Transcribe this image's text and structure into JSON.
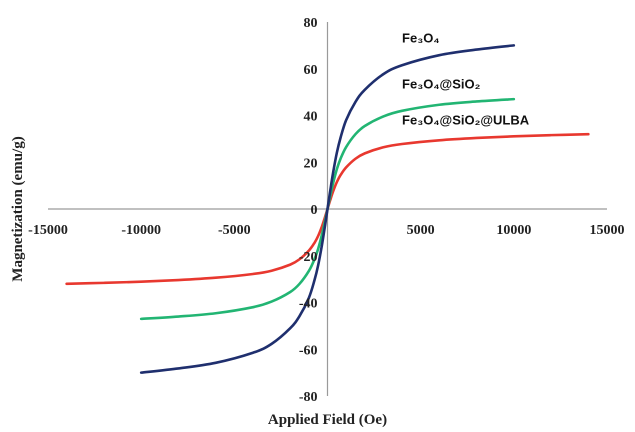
{
  "chart_data": {
    "type": "line",
    "title": "",
    "xlabel": "Applied Field (Oe)",
    "ylabel": "Magnetization (emu/g)",
    "xlim": [
      -15000,
      15000
    ],
    "ylim": [
      -80,
      80
    ],
    "x_ticks": [
      "-15000",
      "-10000",
      "-5000",
      "0",
      "5000",
      "10000",
      "15000"
    ],
    "y_ticks": [
      "80",
      "60",
      "40",
      "20",
      "0",
      "-20",
      "-40",
      "-60",
      "-80"
    ],
    "grid": false,
    "legend": "none",
    "series": [
      {
        "name": "Fe₃O₄",
        "color": "#1f2f6e",
        "x": [
          -10000,
          -8000,
          -6000,
          -4000,
          -3000,
          -2000,
          -1500,
          -1000,
          -700,
          -500,
          -300,
          -150,
          0,
          150,
          300,
          500,
          700,
          1000,
          1500,
          2000,
          3000,
          4000,
          6000,
          8000,
          10000
        ],
        "y": [
          -70,
          -68.2,
          -65.8,
          -61.5,
          -57.7,
          -51.0,
          -45.8,
          -38.0,
          -30.5,
          -24.0,
          -15.5,
          -8.0,
          0,
          8.0,
          15.5,
          24.0,
          30.5,
          38.0,
          45.8,
          51.0,
          57.7,
          61.5,
          65.8,
          68.2,
          70
        ]
      },
      {
        "name": "Fe₃O₄@SiO₂",
        "color": "#22b573",
        "x": [
          -10000,
          -8000,
          -6000,
          -4000,
          -3000,
          -2000,
          -1500,
          -1000,
          -700,
          -500,
          -300,
          -150,
          0,
          150,
          300,
          500,
          700,
          1000,
          1500,
          2000,
          3000,
          4000,
          6000,
          8000,
          10000
        ],
        "y": [
          -47,
          -46.0,
          -44.6,
          -42.0,
          -39.6,
          -35.5,
          -32.0,
          -26.5,
          -21.5,
          -17.0,
          -11.0,
          -5.7,
          0,
          5.7,
          11.0,
          17.0,
          21.5,
          26.5,
          32.0,
          35.5,
          39.6,
          42.0,
          44.6,
          46.0,
          47
        ]
      },
      {
        "name": "Fe₃O₄@SiO₂@ULBA",
        "color": "#e8382f",
        "x": [
          -14000,
          -12000,
          -10000,
          -8000,
          -6000,
          -4000,
          -3000,
          -2000,
          -1500,
          -1000,
          -700,
          -500,
          -300,
          -150,
          0,
          150,
          300,
          500,
          700,
          1000,
          1500,
          2000,
          3000,
          4000,
          6000,
          8000,
          10000,
          12000,
          14000
        ],
        "y": [
          -32,
          -31.6,
          -31.1,
          -30.4,
          -29.4,
          -27.8,
          -26.4,
          -23.8,
          -21.5,
          -17.8,
          -14.5,
          -11.5,
          -7.5,
          -3.9,
          0,
          3.9,
          7.5,
          11.5,
          14.5,
          17.8,
          21.5,
          23.8,
          26.4,
          27.8,
          29.4,
          30.4,
          31.1,
          31.6,
          32
        ]
      }
    ]
  }
}
